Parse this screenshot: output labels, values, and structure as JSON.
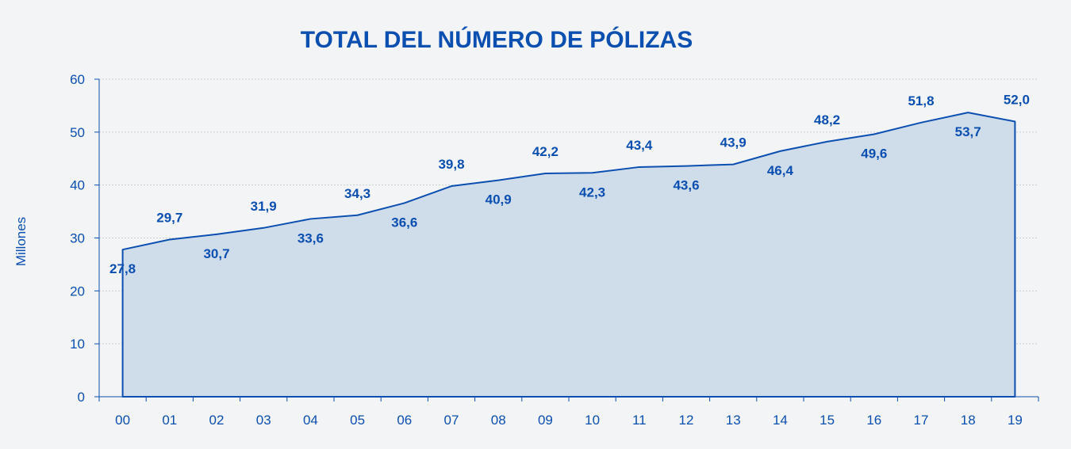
{
  "chart_data": {
    "type": "area",
    "title": "TOTAL DEL NÚMERO DE PÓLIZAS",
    "xlabel": "",
    "ylabel": "Millones",
    "categories": [
      "00",
      "01",
      "02",
      "03",
      "04",
      "05",
      "06",
      "07",
      "08",
      "09",
      "10",
      "11",
      "12",
      "13",
      "14",
      "15",
      "16",
      "17",
      "18",
      "19"
    ],
    "series": [
      {
        "values": [
          27.8,
          29.7,
          30.7,
          31.9,
          33.6,
          34.3,
          36.6,
          39.8,
          40.9,
          42.2,
          42.3,
          43.4,
          43.6,
          43.9,
          46.4,
          48.2,
          49.6,
          51.8,
          53.7,
          52.0
        ],
        "data_labels": [
          "27,8",
          "29,7",
          "30,7",
          "31,9",
          "33,6",
          "34,3",
          "36,6",
          "39,8",
          "40,9",
          "42,2",
          "42,3",
          "43,4",
          "43,6",
          "43,9",
          "46,4",
          "48,2",
          "49,6",
          "51,8",
          "53,7",
          "52,0"
        ]
      }
    ],
    "ylim": [
      0,
      60
    ],
    "yticks": [
      "0",
      "10",
      "20",
      "30",
      "40",
      "50",
      "60"
    ],
    "grid": true,
    "colors": {
      "line": "#0b4fb0",
      "fill": "#cfdcea",
      "text": "#0b4fb0",
      "grid": "#cccccc"
    }
  }
}
